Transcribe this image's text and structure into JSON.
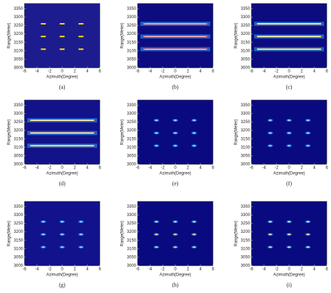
{
  "chart_data": [
    {
      "type": "heatmap",
      "style": "dash",
      "color": "#ffe600",
      "background": "#1c1c8f",
      "caption": "(a)",
      "xlabel": "Azimuth(Degree)",
      "ylabel": "Range(Meter)",
      "x": [
        -3,
        0,
        3
      ],
      "y": [
        3110,
        3185,
        3260
      ],
      "xlim": [
        -6,
        6
      ],
      "ylim": [
        3000,
        3380
      ],
      "xticks": [
        -6,
        -4,
        -2,
        0,
        2,
        4,
        6
      ],
      "yticks": [
        3000,
        3050,
        3100,
        3150,
        3200,
        3250,
        3300,
        3350
      ]
    },
    {
      "type": "heatmap",
      "style": "stripe",
      "color": "#ff6060",
      "background": "#0c0c80",
      "caption": "(b)",
      "xlabel": "Azimuth(Degree)",
      "ylabel": "Range(Meter)",
      "x": [
        -3,
        0,
        3
      ],
      "y": [
        3110,
        3185,
        3260
      ],
      "xlim": [
        -6,
        6
      ],
      "ylim": [
        3000,
        3380
      ],
      "xticks": [
        -6,
        -4,
        -2,
        0,
        2,
        4,
        6
      ],
      "yticks": [
        3000,
        3050,
        3100,
        3150,
        3200,
        3250,
        3300,
        3350
      ]
    },
    {
      "type": "heatmap",
      "style": "stripe",
      "color": "#ffe060",
      "background": "#0c0c80",
      "caption": "(c)",
      "xlabel": "Azimuth(Degree)",
      "ylabel": "Range(Meter)",
      "x": [
        -3,
        0,
        3
      ],
      "y": [
        3110,
        3185,
        3260
      ],
      "xlim": [
        -6,
        6
      ],
      "ylim": [
        3000,
        3380
      ],
      "xticks": [
        -6,
        -4,
        -2,
        0,
        2,
        4,
        6
      ],
      "yticks": [
        3000,
        3050,
        3100,
        3150,
        3200,
        3250,
        3300,
        3350
      ]
    },
    {
      "type": "heatmap",
      "style": "stripe",
      "color": "#ffd060",
      "background": "#12128a",
      "caption": "(d)",
      "xlabel": "Azimuth(Degree)",
      "ylabel": "Range(Meter)",
      "x": [
        -3,
        0,
        3
      ],
      "y": [
        3110,
        3185,
        3260
      ],
      "xlim": [
        -6,
        6
      ],
      "ylim": [
        3000,
        3380
      ],
      "xticks": [
        -6,
        -4,
        -2,
        0,
        2,
        4,
        6
      ],
      "yticks": [
        3000,
        3050,
        3100,
        3150,
        3200,
        3250,
        3300,
        3350
      ]
    },
    {
      "type": "heatmap",
      "style": "point",
      "color": "#a0e0ff",
      "background": "#0a0a80",
      "caption": "(e)",
      "xlabel": "Azimuth(Degree)",
      "ylabel": "Range(Meter)",
      "x": [
        -3,
        0,
        3
      ],
      "y": [
        3110,
        3185,
        3260
      ],
      "xlim": [
        -6,
        6
      ],
      "ylim": [
        3000,
        3380
      ],
      "xticks": [
        -6,
        -4,
        -2,
        0,
        2,
        4,
        6
      ],
      "yticks": [
        3000,
        3050,
        3100,
        3150,
        3200,
        3250,
        3300,
        3350
      ]
    },
    {
      "type": "heatmap",
      "style": "point",
      "color": "#a0e0ff",
      "background": "#0a0a80",
      "caption": "(f)",
      "xlabel": "Azimuth(Degree)",
      "ylabel": "Range(Meter)",
      "x": [
        -3,
        0,
        3
      ],
      "y": [
        3110,
        3185,
        3260
      ],
      "xlim": [
        -6,
        6
      ],
      "ylim": [
        3000,
        3380
      ],
      "xticks": [
        -6,
        -4,
        -2,
        0,
        2,
        4,
        6
      ],
      "yticks": [
        3000,
        3050,
        3100,
        3150,
        3200,
        3250,
        3300,
        3350
      ]
    },
    {
      "type": "heatmap",
      "style": "point",
      "color": "#a0e0ff",
      "background": "#12128c",
      "caption": "(g)",
      "xlabel": "Azimuth(Degree)",
      "ylabel": "Range(Meter)",
      "x": [
        -3,
        0,
        3
      ],
      "y": [
        3110,
        3185,
        3260
      ],
      "xlim": [
        -6,
        6
      ],
      "ylim": [
        3000,
        3380
      ],
      "xticks": [
        -6,
        -4,
        -2,
        0,
        2,
        4,
        6
      ],
      "yticks": [
        3000,
        3050,
        3100,
        3150,
        3200,
        3250,
        3300,
        3350
      ]
    },
    {
      "type": "heatmap",
      "style": "point",
      "color": "#ffe080",
      "background": "#0a0a80",
      "caption": "(h)",
      "xlabel": "Azimuth(Degree)",
      "ylabel": "Range(Meter)",
      "x": [
        -3,
        0,
        3
      ],
      "y": [
        3110,
        3185,
        3260
      ],
      "xlim": [
        -6,
        6
      ],
      "ylim": [
        3000,
        3380
      ],
      "xticks": [
        -6,
        -4,
        -2,
        0,
        2,
        4,
        6
      ],
      "yticks": [
        3000,
        3050,
        3100,
        3150,
        3200,
        3250,
        3300,
        3350
      ]
    },
    {
      "type": "heatmap",
      "style": "point",
      "color": "#fff0a0",
      "background": "#0a0a80",
      "caption": "(i)",
      "xlabel": "Azimuth(Degree)",
      "ylabel": "Range(Meter)",
      "x": [
        -3,
        0,
        3
      ],
      "y": [
        3110,
        3185,
        3260
      ],
      "xlim": [
        -6,
        6
      ],
      "ylim": [
        3000,
        3380
      ],
      "xticks": [
        -6,
        -4,
        -2,
        0,
        2,
        4,
        6
      ],
      "yticks": [
        3000,
        3050,
        3100,
        3150,
        3200,
        3250,
        3300,
        3350
      ]
    }
  ]
}
